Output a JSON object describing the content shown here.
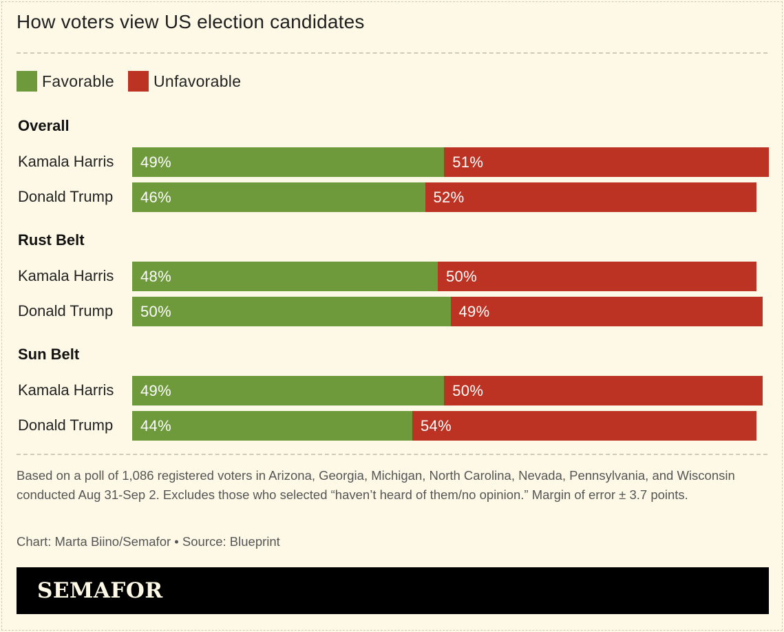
{
  "title": "How voters view US election candidates",
  "legend": [
    {
      "label": "Favorable",
      "color": "#6e9a3c"
    },
    {
      "label": "Unfavorable",
      "color": "#bd3323"
    }
  ],
  "chart_data": {
    "type": "bar",
    "orientation": "horizontal",
    "stacked": true,
    "xlim": [
      0,
      100
    ],
    "series": [
      {
        "name": "Favorable",
        "color": "#6e9a3c"
      },
      {
        "name": "Unfavorable",
        "color": "#bd3323"
      }
    ],
    "groups": [
      {
        "name": "Overall",
        "rows": [
          {
            "label": "Kamala Harris",
            "values": [
              49,
              51
            ],
            "value_labels": [
              "49%",
              "51%"
            ]
          },
          {
            "label": "Donald Trump",
            "values": [
              46,
              52
            ],
            "value_labels": [
              "46%",
              "52%"
            ]
          }
        ]
      },
      {
        "name": "Rust Belt",
        "rows": [
          {
            "label": "Kamala Harris",
            "values": [
              48,
              50
            ],
            "value_labels": [
              "48%",
              "50%"
            ]
          },
          {
            "label": "Donald Trump",
            "values": [
              50,
              49
            ],
            "value_labels": [
              "50%",
              "49%"
            ]
          }
        ]
      },
      {
        "name": "Sun Belt",
        "rows": [
          {
            "label": "Kamala Harris",
            "values": [
              49,
              50
            ],
            "value_labels": [
              "49%",
              "50%"
            ]
          },
          {
            "label": "Donald Trump",
            "values": [
              44,
              54
            ],
            "value_labels": [
              "44%",
              "54%"
            ]
          }
        ]
      }
    ]
  },
  "footnote": "Based on a poll of 1,086 registered voters in Arizona, Georgia, Michigan, North Carolina, Nevada, Pennsylvania, and Wisconsin conducted Aug 31-Sep 2. Excludes those who selected “haven’t heard of them/no opinion.” Margin of error ± 3.7 points.",
  "credit": "Chart: Marta Biino/Semafor • Source: Blueprint",
  "brand": "SEMAFOR"
}
